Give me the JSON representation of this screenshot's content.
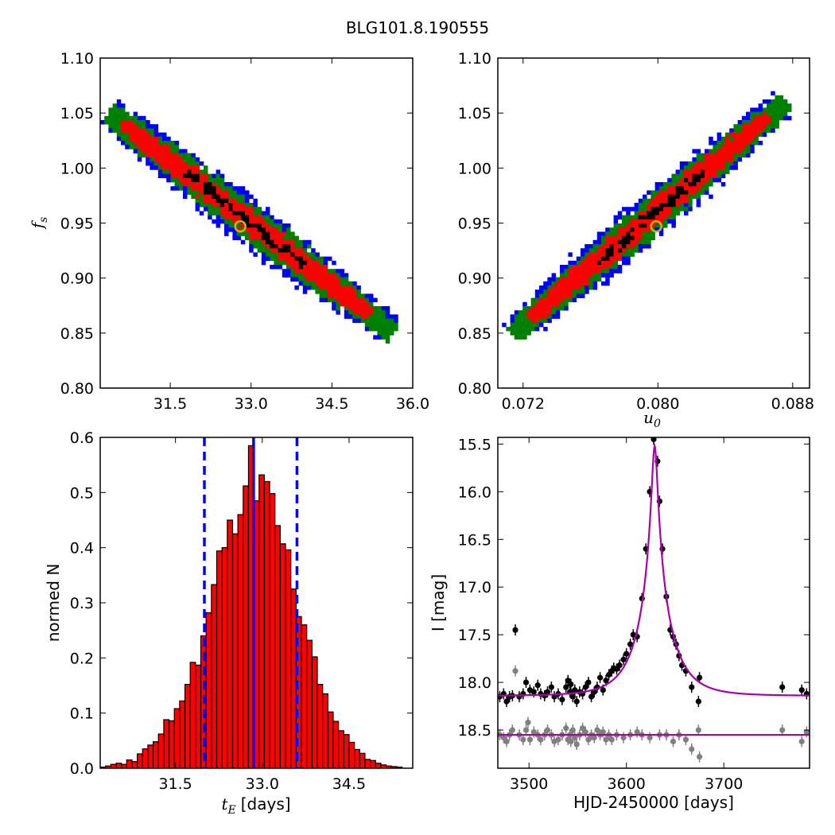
{
  "figure_title": "BLG101.8.190555",
  "colors": {
    "sigma3": "#0000ff",
    "sigma2": "#008000",
    "sigma1": "#ff0000",
    "core": "#000000",
    "best_fit_marker": "#bfbf00",
    "hist_bar": "#ff0000",
    "hist_line": "#0000ff",
    "model_curve": "#aa00aa",
    "data_primary": "#000000",
    "data_secondary": "#808080"
  },
  "chart_data": [
    {
      "id": "fs_vs_tE",
      "type": "heatmap",
      "title": "",
      "xlabel": "",
      "ylabel": "f",
      "ylabel_sub": "s",
      "xlim": [
        30.2,
        36.0
      ],
      "ylim": [
        0.8,
        1.1
      ],
      "xticks": [
        "31.5",
        "33.0",
        "34.5",
        "36.0"
      ],
      "yticks": [
        "0.80",
        "0.85",
        "0.90",
        "0.95",
        "1.00",
        "1.05",
        "1.10"
      ],
      "grid": false,
      "density_ridge": {
        "x_start": 30.5,
        "y_start": 1.045,
        "x_end": 35.5,
        "y_end": 0.855
      },
      "best_fit": {
        "x": 32.8,
        "y": 0.947
      }
    },
    {
      "id": "fs_vs_u0",
      "type": "heatmap",
      "title": "",
      "xlabel": "u",
      "xlabel_sub": "0",
      "ylabel": "",
      "xlim": [
        0.0705,
        0.089
      ],
      "ylim": [
        0.8,
        1.1
      ],
      "xticks": [
        "0.072",
        "0.080",
        "0.088"
      ],
      "yticks": [
        "0.80",
        "0.85",
        "0.90",
        "0.95",
        "1.00",
        "1.05",
        "1.10"
      ],
      "grid": false,
      "density_ridge": {
        "x_start": 0.0718,
        "y_start": 0.855,
        "x_end": 0.0872,
        "y_end": 1.055
      },
      "best_fit": {
        "x": 0.0799,
        "y": 0.947
      }
    },
    {
      "id": "tE_histogram",
      "type": "bar",
      "title": "",
      "xlabel": "t",
      "xlabel_sub": "E",
      "xlabel_unit": "[days]",
      "ylabel": "normed N",
      "xlim": [
        30.2,
        35.6
      ],
      "ylim": [
        0,
        0.6
      ],
      "bin_width": 0.0915,
      "bin_start": 30.2,
      "xticks": [
        "31.5",
        "33.0",
        "34.5"
      ],
      "yticks": [
        "0.0",
        "0.1",
        "0.2",
        "0.3",
        "0.4",
        "0.5",
        "0.6"
      ],
      "values": [
        0.002,
        0.004,
        0.007,
        0.009,
        0.007,
        0.015,
        0.012,
        0.026,
        0.035,
        0.042,
        0.048,
        0.062,
        0.088,
        0.086,
        0.108,
        0.122,
        0.152,
        0.192,
        0.187,
        0.24,
        0.282,
        0.333,
        0.394,
        0.4,
        0.45,
        0.425,
        0.46,
        0.512,
        0.585,
        0.485,
        0.532,
        0.52,
        0.498,
        0.44,
        0.407,
        0.396,
        0.325,
        0.275,
        0.26,
        0.232,
        0.202,
        0.152,
        0.135,
        0.102,
        0.085,
        0.068,
        0.061,
        0.047,
        0.034,
        0.027,
        0.016,
        0.014,
        0.009,
        0.006,
        0.004,
        0.003,
        0.002
      ],
      "median_line": 32.85,
      "sigma_lines": [
        32.0,
        33.6
      ],
      "grid": false
    },
    {
      "id": "lightcurve",
      "type": "scatter",
      "title": "",
      "xlabel": "HJD-2450000 [days]",
      "ylabel": "I [mag]",
      "xlim": [
        3468,
        3788
      ],
      "ylim": [
        18.9,
        15.43
      ],
      "y_inverted": true,
      "xticks": [
        "3500",
        "3600",
        "3700"
      ],
      "yticks": [
        "15.5",
        "16.0",
        "16.5",
        "17.0",
        "17.5",
        "18.0",
        "18.5"
      ],
      "model": {
        "t0": 3629,
        "tE": 32.8,
        "u0": 0.08,
        "baseline_mag": 18.14,
        "peak_mag": 15.52,
        "secondary_baseline_mag": 18.55
      },
      "series": [
        {
          "color": "data_primary",
          "points": [
            [
              3470,
              18.15
            ],
            [
              3474,
              18.12
            ],
            [
              3477,
              18.2
            ],
            [
              3480,
              18.15
            ],
            [
              3483,
              18.14
            ],
            [
              3486,
              17.45
            ],
            [
              3490,
              18.15
            ],
            [
              3494,
              18.12
            ],
            [
              3497,
              18.0
            ],
            [
              3501,
              18.08
            ],
            [
              3505,
              18.1
            ],
            [
              3509,
              18.03
            ],
            [
              3512,
              18.12
            ],
            [
              3516,
              18.14
            ],
            [
              3519,
              18.1
            ],
            [
              3523,
              18.05
            ],
            [
              3526,
              18.15
            ],
            [
              3530,
              18.12
            ],
            [
              3534,
              18.18
            ],
            [
              3538,
              18.05
            ],
            [
              3540,
              17.98
            ],
            [
              3542,
              18.1
            ],
            [
              3543,
              18.02
            ],
            [
              3545,
              18.15
            ],
            [
              3547,
              18.08
            ],
            [
              3549,
              18.2
            ],
            [
              3552,
              18.1
            ],
            [
              3555,
              18.12
            ],
            [
              3558,
              18.05
            ],
            [
              3561,
              18.0
            ],
            [
              3564,
              18.15
            ],
            [
              3567,
              18.1
            ],
            [
              3570,
              18.05
            ],
            [
              3573,
              17.95
            ],
            [
              3576,
              18.08
            ],
            [
              3579,
              17.98
            ],
            [
              3582,
              17.92
            ],
            [
              3585,
              17.88
            ],
            [
              3587,
              17.85
            ],
            [
              3590,
              17.86
            ],
            [
              3593,
              17.82
            ],
            [
              3597,
              17.76
            ],
            [
              3600,
              17.7
            ],
            [
              3604,
              17.6
            ],
            [
              3607,
              17.5
            ],
            [
              3611,
              17.52
            ],
            [
              3616,
              17.12
            ],
            [
              3620,
              16.6
            ],
            [
              3624,
              16.0
            ],
            [
              3628,
              15.45
            ],
            [
              3632,
              15.68
            ],
            [
              3634,
              16.1
            ],
            [
              3637,
              16.6
            ],
            [
              3641,
              17.1
            ],
            [
              3645,
              17.45
            ],
            [
              3648,
              17.52
            ],
            [
              3651,
              17.6
            ],
            [
              3654,
              17.72
            ],
            [
              3657,
              17.82
            ],
            [
              3661,
              17.88
            ],
            [
              3667,
              18.05
            ],
            [
              3674,
              18.2
            ],
            [
              3675,
              17.95
            ],
            [
              3760,
              18.05
            ],
            [
              3780,
              18.08
            ],
            [
              3785,
              18.12
            ]
          ]
        },
        {
          "color": "data_secondary",
          "points": [
            [
              3470,
              18.55
            ],
            [
              3474,
              18.58
            ],
            [
              3477,
              18.62
            ],
            [
              3480,
              18.55
            ],
            [
              3483,
              18.5
            ],
            [
              3486,
              17.88
            ],
            [
              3490,
              18.55
            ],
            [
              3494,
              18.6
            ],
            [
              3497,
              18.5
            ],
            [
              3499,
              18.42
            ],
            [
              3501,
              18.6
            ],
            [
              3505,
              18.52
            ],
            [
              3509,
              18.55
            ],
            [
              3512,
              18.6
            ],
            [
              3516,
              18.55
            ],
            [
              3519,
              18.5
            ],
            [
              3523,
              18.55
            ],
            [
              3526,
              18.62
            ],
            [
              3530,
              18.6
            ],
            [
              3534,
              18.55
            ],
            [
              3538,
              18.48
            ],
            [
              3540,
              18.6
            ],
            [
              3542,
              18.55
            ],
            [
              3543,
              18.62
            ],
            [
              3545,
              18.5
            ],
            [
              3547,
              18.58
            ],
            [
              3549,
              18.65
            ],
            [
              3552,
              18.55
            ],
            [
              3555,
              18.48
            ],
            [
              3558,
              18.52
            ],
            [
              3561,
              18.6
            ],
            [
              3564,
              18.55
            ],
            [
              3567,
              18.58
            ],
            [
              3570,
              18.5
            ],
            [
              3573,
              18.55
            ],
            [
              3576,
              18.52
            ],
            [
              3579,
              18.6
            ],
            [
              3582,
              18.55
            ],
            [
              3585,
              18.6
            ],
            [
              3590,
              18.55
            ],
            [
              3597,
              18.58
            ],
            [
              3604,
              18.55
            ],
            [
              3611,
              18.52
            ],
            [
              3616,
              18.55
            ],
            [
              3624,
              18.58
            ],
            [
              3634,
              18.55
            ],
            [
              3641,
              18.55
            ],
            [
              3648,
              18.62
            ],
            [
              3654,
              18.55
            ],
            [
              3661,
              18.6
            ],
            [
              3667,
              18.7
            ],
            [
              3674,
              18.5
            ],
            [
              3675,
              18.78
            ],
            [
              3760,
              18.5
            ],
            [
              3780,
              18.62
            ],
            [
              3785,
              18.52
            ]
          ]
        }
      ]
    }
  ]
}
